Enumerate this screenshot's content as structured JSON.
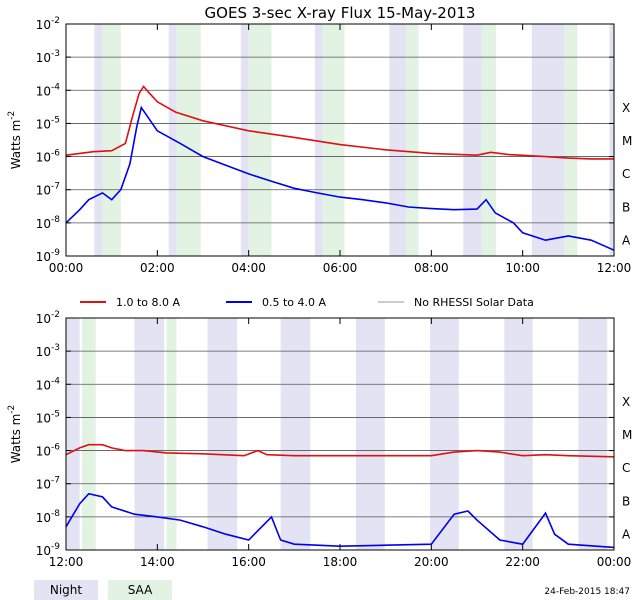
{
  "chart_data": {
    "type": "line",
    "title": "GOES 3-sec X-ray Flux   15-May-2013",
    "ylabel_text": "Watts m",
    "ylabel_sup": "-2",
    "y_scale": "log",
    "ylim": [
      1e-09,
      0.01
    ],
    "y_ticks": [
      {
        "base": "10",
        "exp": "-2"
      },
      {
        "base": "10",
        "exp": "-3"
      },
      {
        "base": "10",
        "exp": "-4"
      },
      {
        "base": "10",
        "exp": "-5"
      },
      {
        "base": "10",
        "exp": "-6"
      },
      {
        "base": "10",
        "exp": "-7"
      },
      {
        "base": "10",
        "exp": "-8"
      },
      {
        "base": "10",
        "exp": "-9"
      }
    ],
    "flare_classes": [
      "X",
      "M",
      "C",
      "B",
      "A"
    ],
    "grid": "horizontal",
    "legend_placement": "between panels",
    "colors": {
      "long": "#dd1111",
      "short": "#0000ee",
      "no_data": "#999999",
      "night": "#e3e3f3",
      "saa": "#e3f3e3"
    },
    "legend": [
      {
        "label": "1.0 to 8.0 A",
        "color": "#dd1111"
      },
      {
        "label": "0.5 to 4.0 A",
        "color": "#0000ee"
      },
      {
        "label": "No RHESSI Solar Data",
        "color": "#999999"
      }
    ],
    "shading_legend": [
      {
        "label": "Night",
        "color": "#e3e3f3"
      },
      {
        "label": "SAA",
        "color": "#e3f3e3"
      }
    ],
    "footer": "24-Feb-2015 18:47",
    "panels": [
      {
        "xlim": [
          0,
          12
        ],
        "x_ticks": [
          "00:00",
          "02:00",
          "04:00",
          "06:00",
          "08:00",
          "10:00",
          "12:00"
        ],
        "night": [
          [
            0.62,
            0.8
          ],
          [
            2.25,
            2.42
          ],
          [
            3.83,
            4.0
          ],
          [
            5.45,
            5.62
          ],
          [
            7.08,
            7.45
          ],
          [
            8.7,
            9.1
          ],
          [
            10.2,
            10.92
          ],
          [
            11.9,
            12.0
          ]
        ],
        "saa": [
          [
            0.8,
            1.2
          ],
          [
            2.42,
            2.95
          ],
          [
            4.0,
            4.5
          ],
          [
            5.62,
            6.1
          ],
          [
            7.45,
            7.72
          ],
          [
            9.1,
            9.42
          ],
          [
            10.92,
            11.2
          ]
        ],
        "long_flux": [
          [
            0.0,
            1.1e-06
          ],
          [
            0.6,
            1.4e-06
          ],
          [
            1.0,
            1.5e-06
          ],
          [
            1.3,
            2.5e-06
          ],
          [
            1.45,
            1.5e-05
          ],
          [
            1.6,
            8e-05
          ],
          [
            1.7,
            0.00013
          ],
          [
            1.8,
            9e-05
          ],
          [
            2.0,
            4.5e-05
          ],
          [
            2.4,
            2.2e-05
          ],
          [
            3.0,
            1.2e-05
          ],
          [
            4.0,
            6e-06
          ],
          [
            5.0,
            3.8e-06
          ],
          [
            6.0,
            2.3e-06
          ],
          [
            7.0,
            1.6e-06
          ],
          [
            8.0,
            1.25e-06
          ],
          [
            9.0,
            1.1e-06
          ],
          [
            9.3,
            1.35e-06
          ],
          [
            9.7,
            1.15e-06
          ],
          [
            10.5,
            1e-06
          ],
          [
            11.0,
            9e-07
          ],
          [
            11.5,
            8.5e-07
          ],
          [
            12.0,
            8.5e-07
          ]
        ],
        "short_flux": [
          [
            0.0,
            1e-08
          ],
          [
            0.3,
            2.5e-08
          ],
          [
            0.5,
            5e-08
          ],
          [
            0.8,
            8e-08
          ],
          [
            1.0,
            5e-08
          ],
          [
            1.2,
            1e-07
          ],
          [
            1.4,
            6e-07
          ],
          [
            1.55,
            8e-06
          ],
          [
            1.65,
            3e-05
          ],
          [
            1.8,
            1.5e-05
          ],
          [
            2.0,
            6e-06
          ],
          [
            2.5,
            2.5e-06
          ],
          [
            3.0,
            1e-06
          ],
          [
            3.5,
            5.5e-07
          ],
          [
            4.0,
            3e-07
          ],
          [
            4.5,
            1.8e-07
          ],
          [
            5.0,
            1.1e-07
          ],
          [
            5.5,
            8e-08
          ],
          [
            6.0,
            6e-08
          ],
          [
            6.5,
            5e-08
          ],
          [
            7.0,
            4e-08
          ],
          [
            7.5,
            3e-08
          ],
          [
            8.0,
            2.7e-08
          ],
          [
            8.5,
            2.5e-08
          ],
          [
            9.0,
            2.6e-08
          ],
          [
            9.2,
            5e-08
          ],
          [
            9.4,
            2e-08
          ],
          [
            9.8,
            1e-08
          ],
          [
            10.0,
            5e-09
          ],
          [
            10.5,
            3e-09
          ],
          [
            11.0,
            4e-09
          ],
          [
            11.5,
            3e-09
          ],
          [
            12.0,
            1.5e-09
          ]
        ]
      },
      {
        "xlim": [
          12,
          24
        ],
        "x_ticks": [
          "12:00",
          "14:00",
          "16:00",
          "18:00",
          "20:00",
          "22:00",
          "00:00"
        ],
        "night": [
          [
            12.0,
            12.3
          ],
          [
            13.5,
            14.15
          ],
          [
            15.1,
            15.75
          ],
          [
            16.7,
            17.35
          ],
          [
            18.35,
            18.98
          ],
          [
            19.97,
            20.6
          ],
          [
            21.6,
            22.22
          ],
          [
            23.22,
            23.85
          ]
        ],
        "saa": [
          [
            12.35,
            12.65
          ],
          [
            14.2,
            14.42
          ]
        ],
        "long_flux": [
          [
            12.0,
            7.5e-07
          ],
          [
            12.3,
            1.2e-06
          ],
          [
            12.5,
            1.5e-06
          ],
          [
            12.8,
            1.5e-06
          ],
          [
            13.0,
            1.2e-06
          ],
          [
            13.3,
            1e-06
          ],
          [
            13.7,
            1e-06
          ],
          [
            14.2,
            8.5e-07
          ],
          [
            15.0,
            8e-07
          ],
          [
            15.9,
            7e-07
          ],
          [
            16.2,
            1e-06
          ],
          [
            16.4,
            7.5e-07
          ],
          [
            17.0,
            7e-07
          ],
          [
            18.0,
            7e-07
          ],
          [
            19.0,
            7e-07
          ],
          [
            20.0,
            7e-07
          ],
          [
            20.5,
            9e-07
          ],
          [
            21.0,
            1e-06
          ],
          [
            21.5,
            9e-07
          ],
          [
            22.0,
            7e-07
          ],
          [
            22.5,
            7.5e-07
          ],
          [
            23.0,
            7e-07
          ],
          [
            24.0,
            6.5e-07
          ]
        ],
        "short_flux": [
          [
            12.0,
            5e-09
          ],
          [
            12.3,
            2.5e-08
          ],
          [
            12.5,
            5e-08
          ],
          [
            12.8,
            4e-08
          ],
          [
            13.0,
            2e-08
          ],
          [
            13.5,
            1.2e-08
          ],
          [
            14.0,
            1e-08
          ],
          [
            14.5,
            8e-09
          ],
          [
            15.0,
            5e-09
          ],
          [
            15.5,
            3e-09
          ],
          [
            16.0,
            2e-09
          ],
          [
            16.5,
            1e-08
          ],
          [
            16.7,
            2e-09
          ],
          [
            17.0,
            1.5e-09
          ],
          [
            18.0,
            1.3e-09
          ],
          [
            19.0,
            1.4e-09
          ],
          [
            20.0,
            1.5e-09
          ],
          [
            20.5,
            1.2e-08
          ],
          [
            20.8,
            1.5e-08
          ],
          [
            21.0,
            8e-09
          ],
          [
            21.5,
            2e-09
          ],
          [
            22.0,
            1.5e-09
          ],
          [
            22.5,
            1.3e-08
          ],
          [
            22.7,
            3e-09
          ],
          [
            23.0,
            1.5e-09
          ],
          [
            24.0,
            1.2e-09
          ]
        ]
      }
    ]
  }
}
